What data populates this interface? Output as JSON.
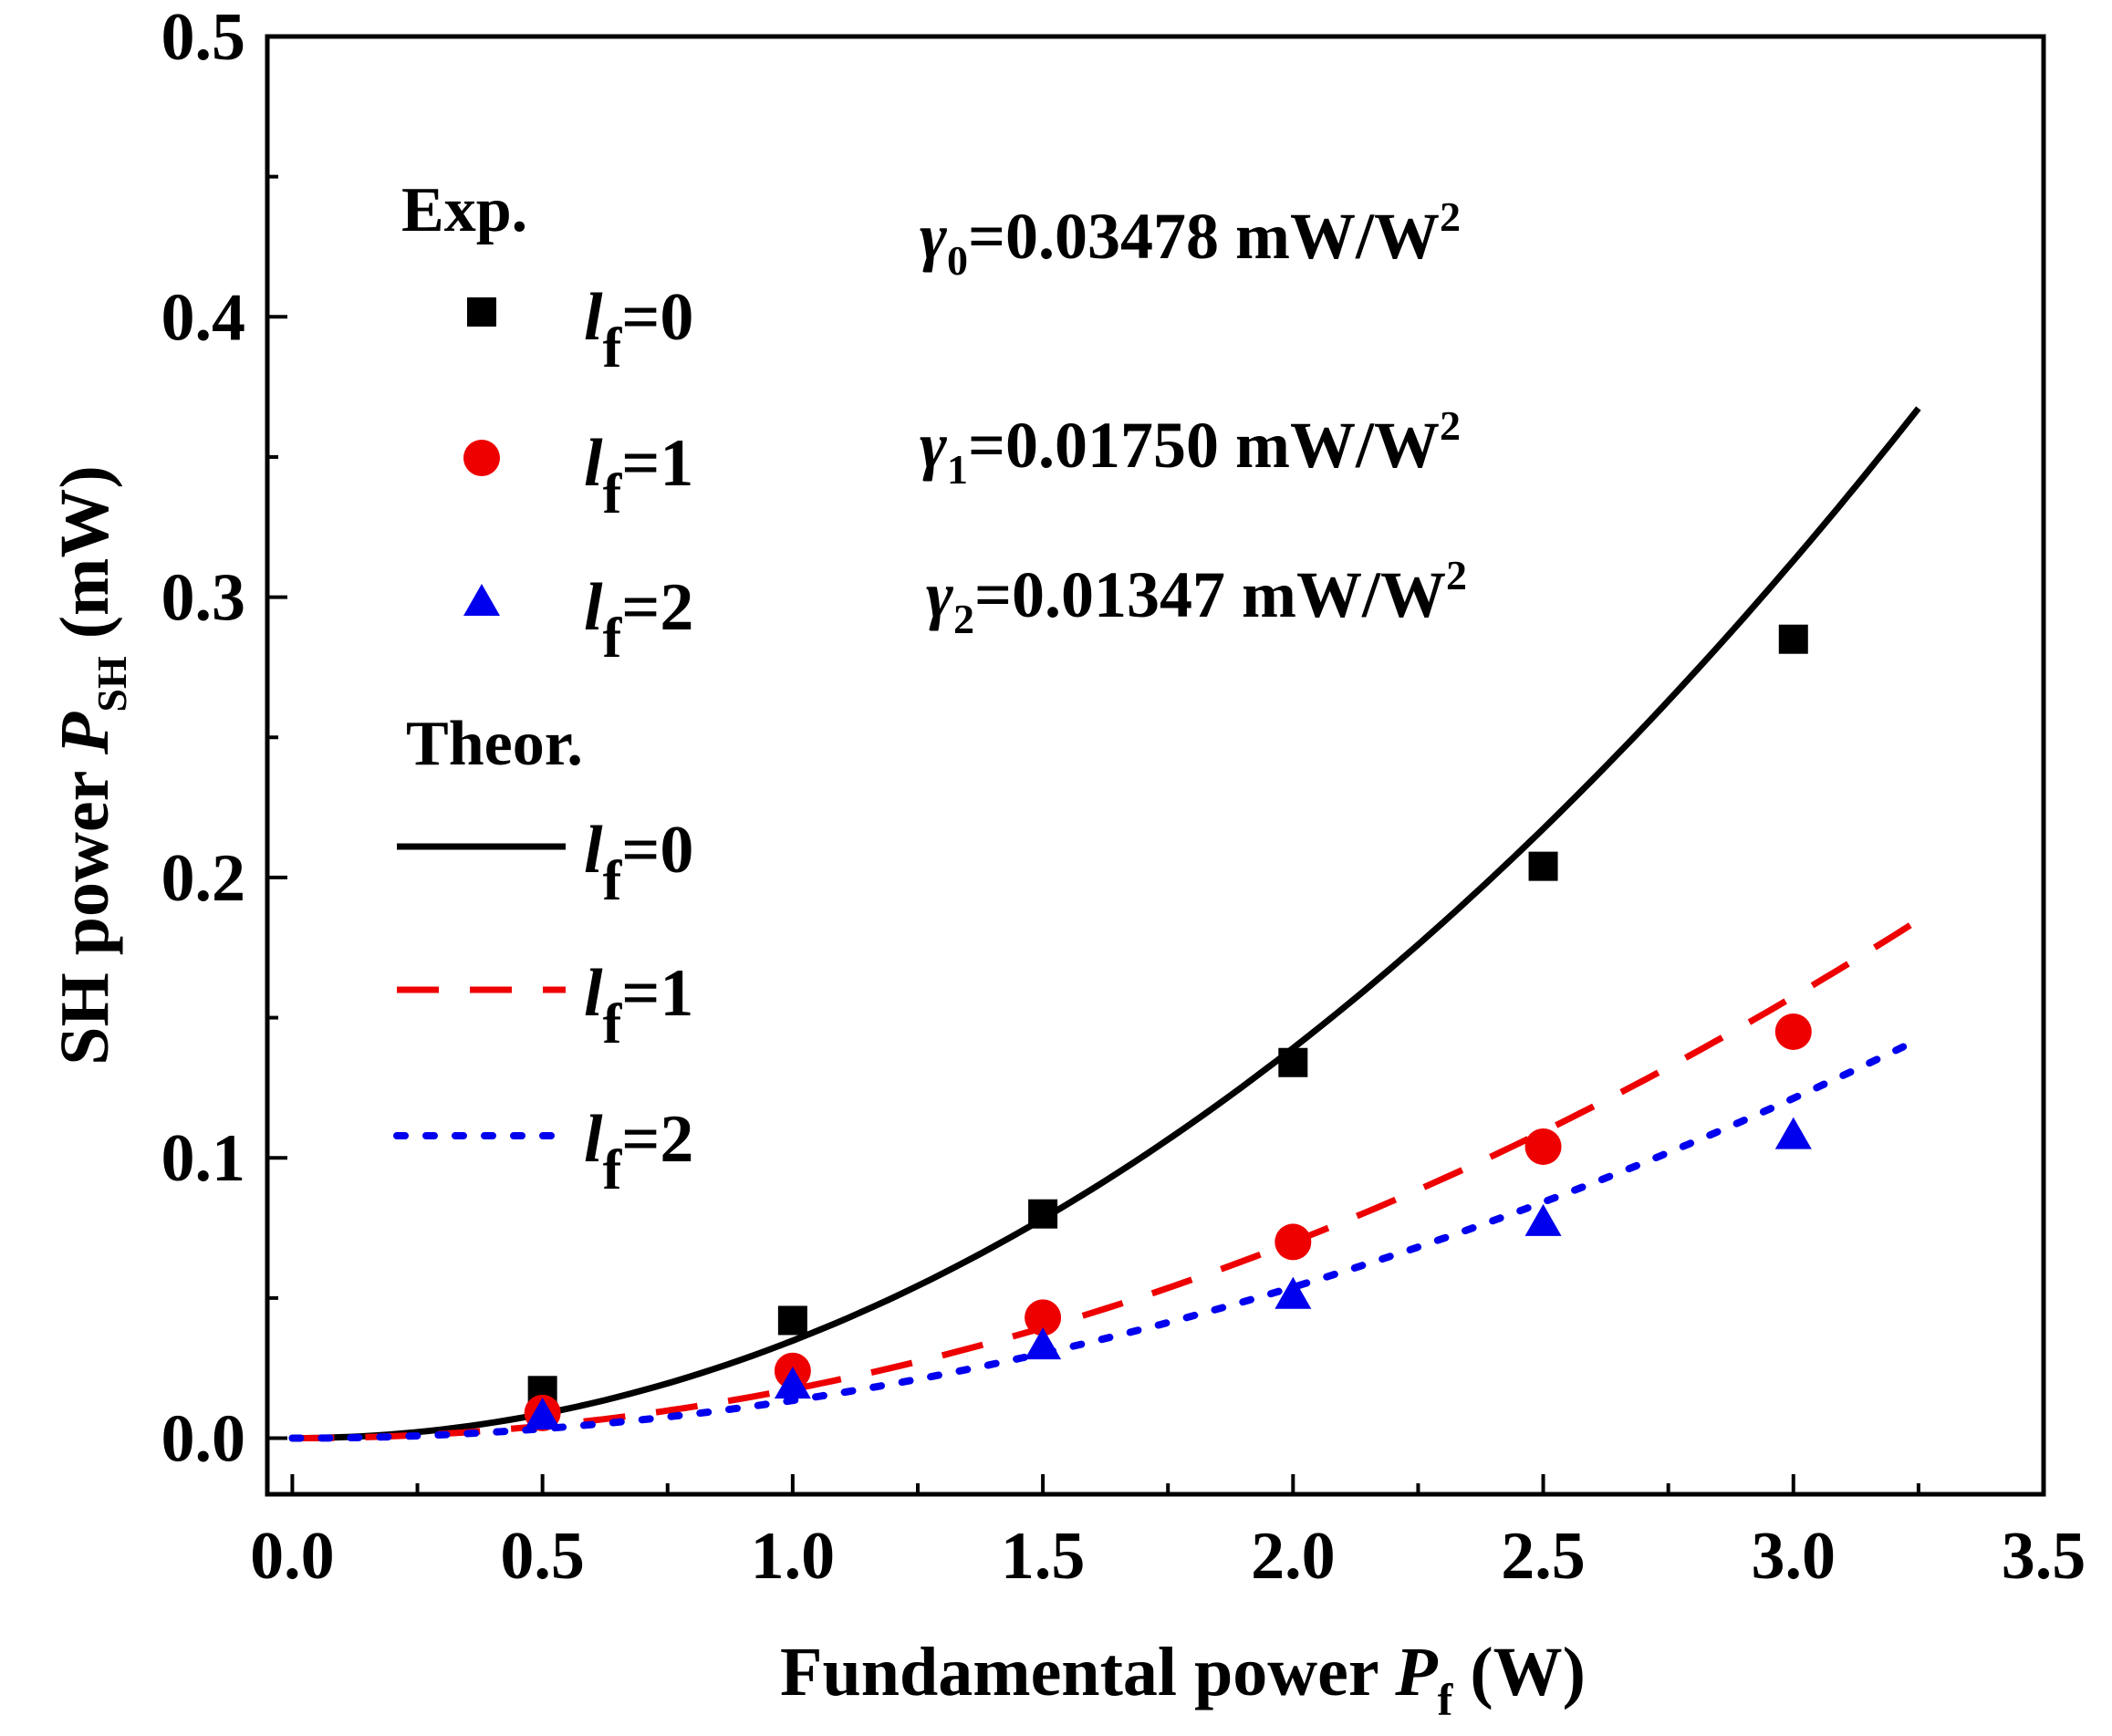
{
  "chart_data": {
    "type": "scatter",
    "xlabel": {
      "text": "Fundamental power ",
      "symbol": "P",
      "sub": "f",
      "unit": " (W)"
    },
    "ylabel": {
      "text": "SH power ",
      "symbol": "P",
      "sub": "SH",
      "unit": " (mW)"
    },
    "xlim": [
      -0.05,
      3.5
    ],
    "ylim": [
      -0.02,
      0.5
    ],
    "xticks": [
      0.0,
      0.5,
      1.0,
      1.5,
      2.0,
      2.5,
      3.0,
      3.5
    ],
    "xtick_labels": [
      "0.0",
      "0.5",
      "1.0",
      "1.5",
      "2.0",
      "2.5",
      "3.0",
      "3.5"
    ],
    "yticks": [
      0.0,
      0.1,
      0.2,
      0.3,
      0.4,
      0.5
    ],
    "ytick_labels": [
      "0.0",
      "0.1",
      "0.2",
      "0.3",
      "0.4",
      "0.5"
    ],
    "grid": false,
    "experimental": [
      {
        "name": "lf=0",
        "marker": "square",
        "color": "#000000",
        "x": [
          0.5,
          1.0,
          1.5,
          2.0,
          2.5,
          3.0
        ],
        "y": [
          0.017,
          0.042,
          0.08,
          0.134,
          0.204,
          0.285
        ]
      },
      {
        "name": "lf=1",
        "marker": "circle",
        "color": "#ee0000",
        "x": [
          0.5,
          1.0,
          1.5,
          2.0,
          2.5,
          3.0
        ],
        "y": [
          0.009,
          0.024,
          0.043,
          0.07,
          0.104,
          0.145
        ]
      },
      {
        "name": "lf=2",
        "marker": "triangle",
        "color": "#0000ee",
        "x": [
          0.5,
          1.0,
          1.5,
          2.0,
          2.5,
          3.0
        ],
        "y": [
          0.008,
          0.019,
          0.033,
          0.051,
          0.077,
          0.108
        ]
      }
    ],
    "theoretical": [
      {
        "name": "lf=0",
        "style": "solid",
        "color": "#000000",
        "gamma": 0.03478,
        "x_range": [
          0.0,
          3.25
        ]
      },
      {
        "name": "lf=1",
        "style": "dashed",
        "color": "#ee0000",
        "gamma": 0.0175,
        "x_range": [
          0.0,
          3.25
        ]
      },
      {
        "name": "lf=2",
        "style": "dotted",
        "color": "#0000ee",
        "gamma": 0.01347,
        "x_range": [
          0.0,
          3.25
        ]
      }
    ],
    "legend": {
      "exp_header": "Exp.",
      "theor_header": "Theor.",
      "entries": [
        {
          "l": "l",
          "sub": "f",
          "eq": "=0"
        },
        {
          "l": "l",
          "sub": "f",
          "eq": "=1"
        },
        {
          "l": "l",
          "sub": "f",
          "eq": "=2"
        }
      ],
      "placement": "top-left"
    },
    "annotations": [
      {
        "symbol": "γ",
        "sub": "0",
        "text": "=0.03478 mW/W",
        "sup": "2"
      },
      {
        "symbol": "γ",
        "sub": "1",
        "text": "=0.01750 mW/W",
        "sup": "2"
      },
      {
        "symbol": "γ",
        "sub": "2",
        "text": "=0.01347 mW/W",
        "sup": "2"
      }
    ]
  }
}
